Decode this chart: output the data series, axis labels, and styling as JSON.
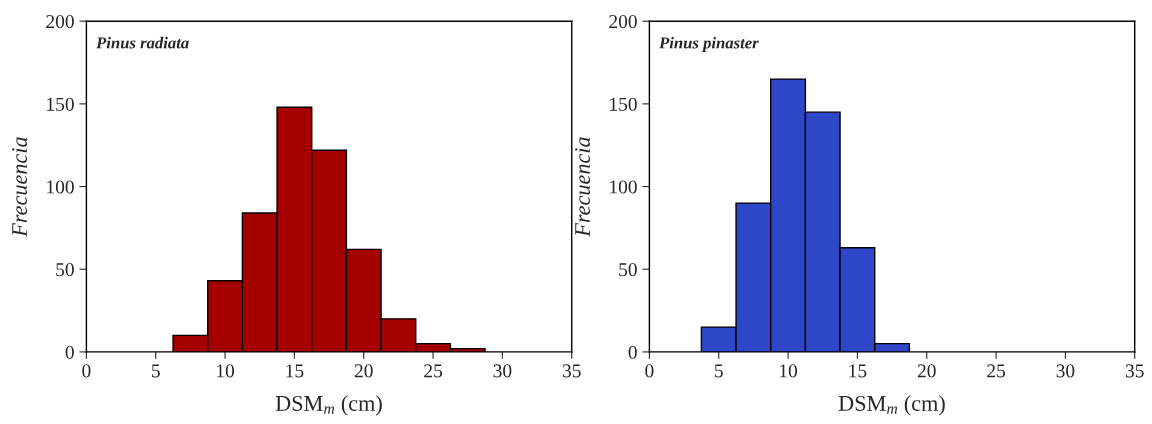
{
  "chart_data": [
    {
      "type": "histogram",
      "annotations": [
        "Pinus radiata"
      ],
      "xlabel": "DSM$_{m}$ (cm)",
      "ylabel": "Frecuencia",
      "color": "#a50000",
      "bins": [
        6.25,
        8.75,
        11.25,
        13.75,
        16.25,
        18.75,
        21.25,
        23.75,
        26.25,
        28.75
      ],
      "values": [
        10,
        43,
        84,
        148,
        122,
        62,
        20,
        5,
        2
      ],
      "xlim": [
        0,
        35
      ],
      "xticks": [
        0,
        5,
        10,
        15,
        20,
        25,
        30,
        35
      ],
      "ylim": [
        0,
        200
      ],
      "yticks": [
        0,
        50,
        100,
        150,
        200
      ],
      "grid": false
    },
    {
      "type": "histogram",
      "annotations": [
        "Pinus pinaster"
      ],
      "xlabel": "DSM$_{m}$ (cm)",
      "ylabel": "Frecuencia",
      "color": "#2e47c8",
      "bins": [
        3.75,
        6.25,
        8.75,
        11.25,
        13.75,
        16.25,
        18.75
      ],
      "values": [
        15,
        90,
        165,
        145,
        63,
        5
      ],
      "xlim": [
        0,
        35
      ],
      "xticks": [
        0,
        5,
        10,
        15,
        20,
        25,
        30,
        35
      ],
      "ylim": [
        0,
        200
      ],
      "yticks": [
        0,
        50,
        100,
        150,
        200
      ],
      "grid": false
    }
  ]
}
